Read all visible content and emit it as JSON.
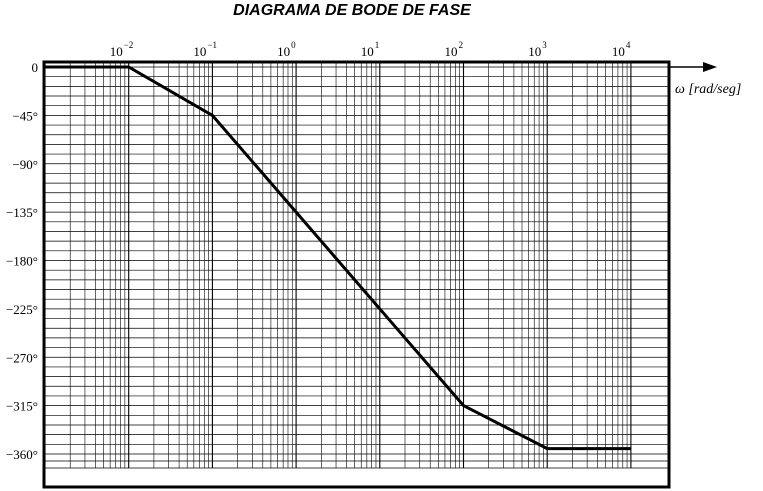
{
  "chart_data": {
    "type": "line",
    "title": "DIAGRAMA DE BODE DE FASE",
    "xlabel": "ω [rad/seg]",
    "x_scale": "log",
    "xlim": [
      0.001,
      10000
    ],
    "ylim": [
      -360,
      0
    ],
    "x_ticks": [
      {
        "base": "10",
        "exp": "−2"
      },
      {
        "base": "10",
        "exp": "−1"
      },
      {
        "base": "10",
        "exp": "0"
      },
      {
        "base": "10",
        "exp": "1"
      },
      {
        "base": "10",
        "exp": "2"
      },
      {
        "base": "10",
        "exp": "3"
      },
      {
        "base": "10",
        "exp": "4"
      }
    ],
    "y_ticks": [
      "0",
      "−45°",
      "−90°",
      "−135°",
      "−180°",
      "−225°",
      "−270°",
      "−315°",
      "−360°"
    ],
    "grid": true,
    "series": [
      {
        "x": [
          0.001,
          0.01,
          0.1,
          100,
          1000,
          10000
        ],
        "y": [
          0,
          0,
          -45,
          -315,
          -355,
          -355
        ],
        "color": "#000000"
      }
    ]
  }
}
